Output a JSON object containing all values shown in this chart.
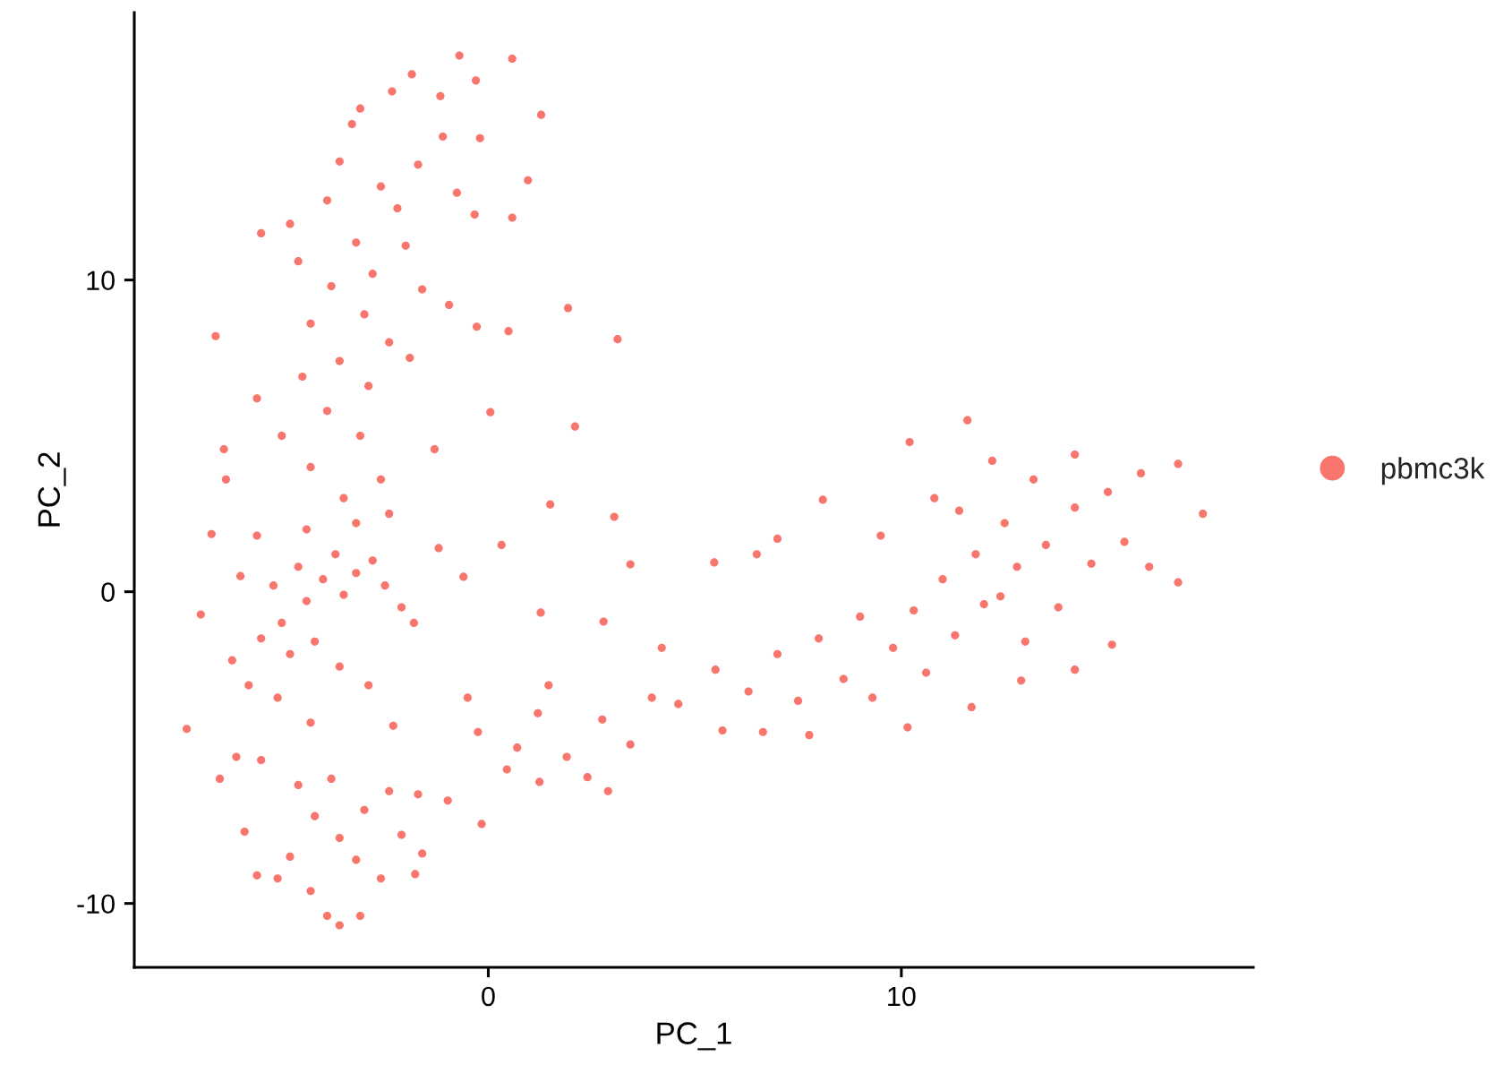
{
  "chart_data": {
    "type": "scatter",
    "xlabel": "PC_1",
    "ylabel": "PC_2",
    "xlim": [
      -8.57,
      18.52
    ],
    "ylim": [
      -12.05,
      18.58
    ],
    "xticks": [
      0,
      10
    ],
    "yticks": [
      -10,
      0,
      10
    ],
    "grid": false,
    "legend": "right",
    "marker": "circle",
    "series": [
      {
        "name": "pbmc3k",
        "color": "#f8766d",
        "x": [
          -0.7,
          0.58,
          -1.85,
          -0.3,
          -2.33,
          -1.16,
          -3.1,
          1.28,
          -3.3,
          -1.1,
          -0.2,
          -3.6,
          -1.7,
          0.96,
          -2.6,
          -0.76,
          -0.33,
          0.58,
          -3.9,
          -2.2,
          -4.8,
          -5.5,
          -2.0,
          -3.2,
          -4.6,
          -2.8,
          -3.8,
          -1.6,
          -0.95,
          1.93,
          -3.0,
          -4.3,
          -0.28,
          0.49,
          3.13,
          -6.6,
          -2.4,
          -3.6,
          -1.9,
          -4.5,
          -2.9,
          -5.6,
          -3.9,
          0.05,
          2.1,
          -5.0,
          -3.1,
          -6.4,
          -1.3,
          -4.3,
          -2.6,
          1.5,
          3.05,
          -6.35,
          -3.5,
          -6.96,
          -7.3,
          -6.7,
          -6.0,
          -5.6,
          -5.2,
          -5.0,
          -4.6,
          -4.4,
          -4.0,
          -3.7,
          -3.5,
          -3.2,
          -2.8,
          -2.5,
          -2.1,
          -4.8,
          -5.5,
          -6.2,
          -5.8,
          -4.2,
          -3.6,
          -5.1,
          -4.4,
          -3.2,
          -2.4,
          -6.5,
          -6.1,
          -5.5,
          -4.3,
          -2.9,
          -1.8,
          -2.3,
          -1.2,
          -5.9,
          -5.6,
          -5.1,
          -3.9,
          -3.6,
          -3.1,
          -4.3,
          -2.6,
          -1.77,
          -1.6,
          -1.7,
          -0.98,
          -0.16,
          -3.6,
          -4.2,
          -3.0,
          -2.4,
          -4.6,
          -3.8,
          -2.1,
          -4.8,
          -3.2,
          0.32,
          -0.6,
          1.27,
          2.79,
          3.44,
          5.47,
          1.46,
          1.2,
          0.7,
          0.45,
          1.24,
          1.9,
          2.4,
          2.9,
          2.76,
          3.44,
          4.2,
          3.96,
          -0.5,
          -0.25,
          11.6,
          10.2,
          8.1,
          7.0,
          6.5,
          14.2,
          16.7,
          17.3,
          16.7,
          15.1,
          14.2,
          12.9,
          11.7,
          10.15,
          7.77,
          6.65,
          5.67,
          4.6,
          5.5,
          6.3,
          7.0,
          7.5,
          8.0,
          8.6,
          9.0,
          9.3,
          9.8,
          10.3,
          10.6,
          11.0,
          11.3,
          11.8,
          12.0,
          12.4,
          12.5,
          12.8,
          13.0,
          13.2,
          13.5,
          13.8,
          14.2,
          14.6,
          15.0,
          15.4,
          15.8,
          16.0,
          12.2,
          10.8,
          9.5,
          11.4
        ],
        "values": [
          17.2,
          17.1,
          16.6,
          16.4,
          16.05,
          15.9,
          15.5,
          15.3,
          15.0,
          14.6,
          14.55,
          13.8,
          13.7,
          13.2,
          13.0,
          12.8,
          12.1,
          12.0,
          12.55,
          12.3,
          11.8,
          11.5,
          11.1,
          11.2,
          10.6,
          10.2,
          9.8,
          9.7,
          9.2,
          9.1,
          8.9,
          8.6,
          8.5,
          8.36,
          8.1,
          8.2,
          8.0,
          7.4,
          7.5,
          6.9,
          6.6,
          6.2,
          5.8,
          5.76,
          5.3,
          5.0,
          5.0,
          4.57,
          4.57,
          4.0,
          3.6,
          2.8,
          2.4,
          3.6,
          3.0,
          -0.73,
          -4.4,
          1.85,
          0.5,
          1.8,
          0.2,
          -1.0,
          0.8,
          -0.3,
          0.4,
          1.2,
          -0.1,
          0.6,
          1.0,
          0.2,
          -0.5,
          -2.0,
          -1.5,
          -2.2,
          -3.0,
          -1.6,
          -2.4,
          -3.4,
          2.0,
          2.2,
          2.5,
          -6.0,
          -5.3,
          -5.4,
          -4.2,
          -3.0,
          -1.0,
          -4.3,
          1.4,
          -7.7,
          -9.1,
          -9.2,
          -10.4,
          -10.7,
          -10.4,
          -9.6,
          -9.2,
          -9.06,
          -8.4,
          -6.5,
          -6.7,
          -7.45,
          -7.9,
          -7.2,
          -7.0,
          -6.4,
          -6.2,
          -6.0,
          -7.8,
          -8.5,
          -8.6,
          1.5,
          0.48,
          -0.67,
          -0.96,
          0.88,
          0.94,
          -3.0,
          -3.9,
          -5.0,
          -5.7,
          -6.1,
          -5.3,
          -5.95,
          -6.4,
          -4.1,
          -4.9,
          -1.8,
          -3.4,
          -3.4,
          -4.5,
          5.5,
          4.8,
          2.95,
          1.7,
          1.2,
          4.4,
          4.1,
          2.5,
          0.3,
          -1.7,
          -2.5,
          -2.85,
          -3.7,
          -4.35,
          -4.6,
          -4.5,
          -4.45,
          -3.6,
          -2.5,
          -3.2,
          -2.0,
          -3.5,
          -1.5,
          -2.8,
          -0.8,
          -3.4,
          -1.8,
          -0.6,
          -2.6,
          0.4,
          -1.4,
          1.2,
          -0.4,
          -0.15,
          2.2,
          0.8,
          -1.6,
          3.6,
          1.5,
          -0.5,
          2.7,
          0.9,
          3.2,
          1.6,
          3.8,
          0.8,
          4.2,
          3.0,
          1.8,
          2.6
        ]
      }
    ]
  }
}
